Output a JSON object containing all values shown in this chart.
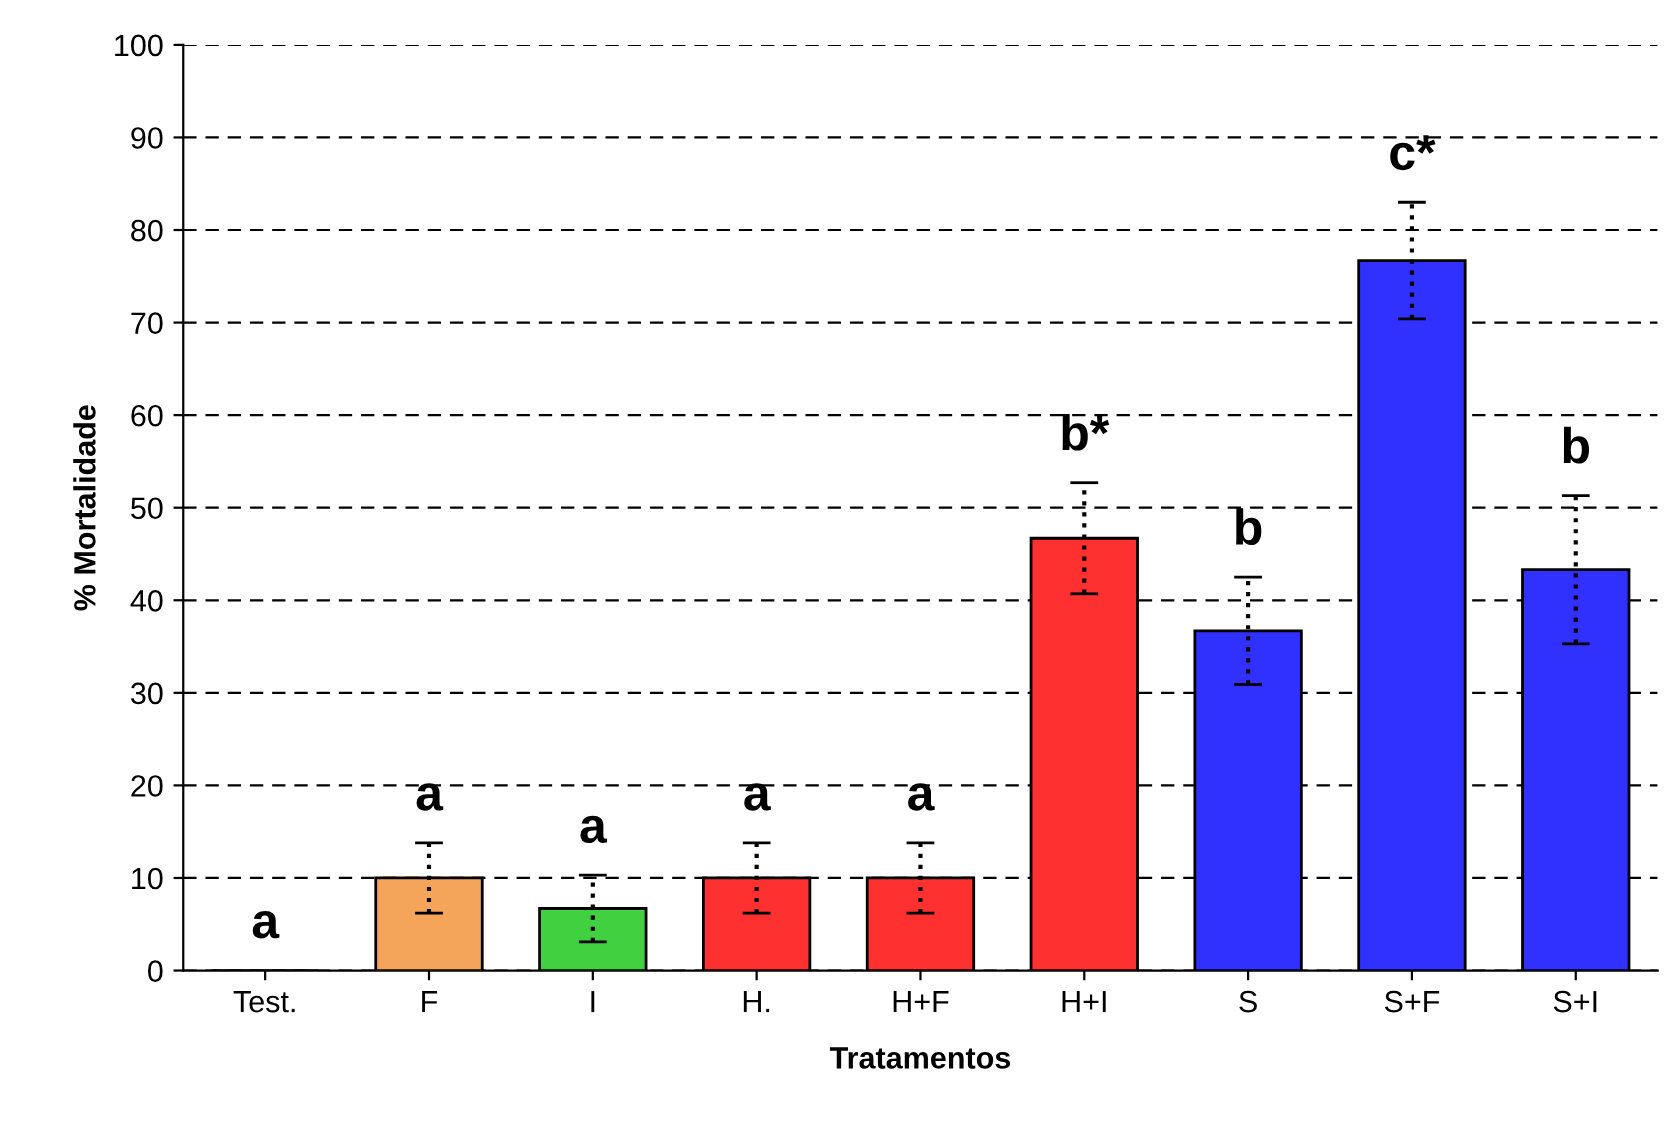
{
  "chart_data": {
    "type": "bar",
    "xlabel": "Tratamentos",
    "ylabel": "% Mortalidade",
    "categories": [
      "Test.",
      "F",
      "I",
      "H.",
      "H+F",
      "H+I",
      "S",
      "S+F",
      "S+I"
    ],
    "values": [
      0,
      10,
      6.7,
      10,
      10,
      46.7,
      36.7,
      76.7,
      43.3
    ],
    "errors": [
      null,
      3.8,
      3.6,
      3.8,
      3.8,
      6,
      5.8,
      6.3,
      8
    ],
    "colors": [
      "#000000",
      "#f5a55a",
      "#40d040",
      "#ff3030",
      "#ff3030",
      "#ff3030",
      "#3030ff",
      "#3030ff",
      "#3030ff"
    ],
    "ylim": [
      0,
      100
    ],
    "yticks": [
      0,
      10,
      20,
      30,
      40,
      50,
      60,
      70,
      80,
      90,
      100
    ],
    "grid": "y",
    "value_labels": [
      "a",
      "a",
      "a",
      "a",
      "a",
      "b*",
      "b",
      "c*",
      "b"
    ]
  }
}
